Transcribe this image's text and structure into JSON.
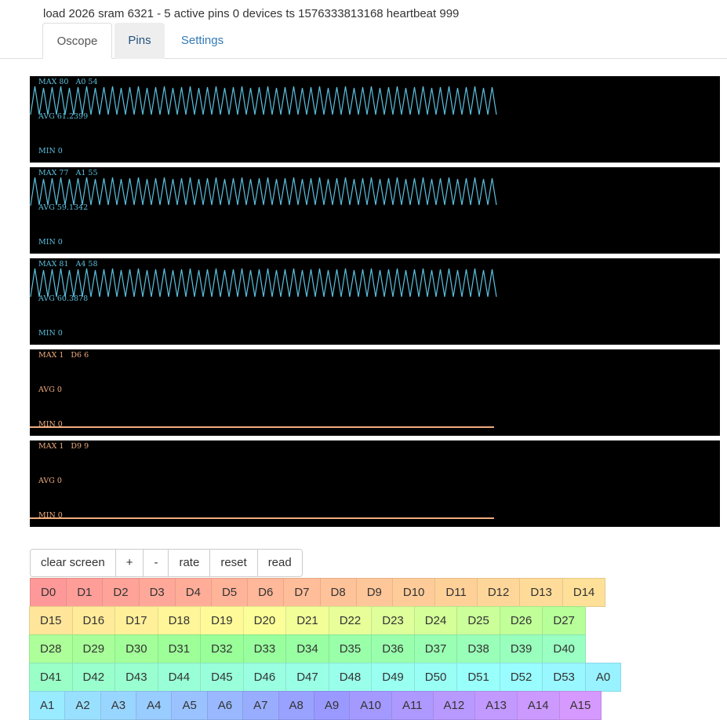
{
  "status": {
    "text": "load 2026 sram 6321 - 5 active pins 0 devices ts 1576333813168 heartbeat 999"
  },
  "tabs": [
    {
      "label": "Oscope"
    },
    {
      "label": "Pins"
    },
    {
      "label": "Settings"
    }
  ],
  "scopes": [
    {
      "max": "MAX 80",
      "pin": "A0 54",
      "avg": "AVG 61.2399",
      "min": "MIN 0",
      "color": "#5bc0de",
      "signal": "oscillating"
    },
    {
      "max": "MAX 77",
      "pin": "A1 55",
      "avg": "AVG 59.1342",
      "min": "MIN 0",
      "color": "#5bc0de",
      "signal": "oscillating"
    },
    {
      "max": "MAX 81",
      "pin": "A4 58",
      "avg": "AVG 60.3878",
      "min": "MIN 0",
      "color": "#5bc0de",
      "signal": "oscillating"
    },
    {
      "max": "MAX 1",
      "pin": "D6 6",
      "avg": "AVG 0",
      "min": "MIN 0",
      "color": "#f0ad7e",
      "signal": "flat"
    },
    {
      "max": "MAX 1",
      "pin": "D9 9",
      "avg": "AVG 0",
      "min": "MIN 0",
      "color": "#f0ad7e",
      "signal": "flat"
    }
  ],
  "controls": [
    {
      "label": "clear screen"
    },
    {
      "label": "+"
    },
    {
      "label": "-"
    },
    {
      "label": "rate"
    },
    {
      "label": "reset"
    },
    {
      "label": "read"
    }
  ],
  "pin_rows": [
    [
      {
        "label": "D0",
        "color": "#ff9999"
      },
      {
        "label": "D1",
        "color": "#ff9e99"
      },
      {
        "label": "D2",
        "color": "#ffa399"
      },
      {
        "label": "D3",
        "color": "#ffa899"
      },
      {
        "label": "D4",
        "color": "#ffad99"
      },
      {
        "label": "D5",
        "color": "#ffb399"
      },
      {
        "label": "D6",
        "color": "#ffb899"
      },
      {
        "label": "D7",
        "color": "#ffbd99"
      },
      {
        "label": "D8",
        "color": "#ffc299"
      },
      {
        "label": "D9",
        "color": "#ffc799"
      },
      {
        "label": "D10",
        "color": "#ffcc99"
      },
      {
        "label": "D11",
        "color": "#ffd199"
      },
      {
        "label": "D12",
        "color": "#ffd699"
      },
      {
        "label": "D13",
        "color": "#ffdb99"
      },
      {
        "label": "D14",
        "color": "#ffe099"
      }
    ],
    [
      {
        "label": "D15",
        "color": "#ffe599"
      },
      {
        "label": "D16",
        "color": "#ffeb99"
      },
      {
        "label": "D17",
        "color": "#fff099"
      },
      {
        "label": "D18",
        "color": "#fff599"
      },
      {
        "label": "D19",
        "color": "#fffa99"
      },
      {
        "label": "D20",
        "color": "#fcff99"
      },
      {
        "label": "D21",
        "color": "#f2ff99"
      },
      {
        "label": "D22",
        "color": "#e8ff99"
      },
      {
        "label": "D23",
        "color": "#deff99"
      },
      {
        "label": "D24",
        "color": "#d4ff99"
      },
      {
        "label": "D25",
        "color": "#cbff99"
      },
      {
        "label": "D26",
        "color": "#c1ff99"
      },
      {
        "label": "D27",
        "color": "#b7ff99"
      }
    ],
    [
      {
        "label": "D28",
        "color": "#adff99"
      },
      {
        "label": "D29",
        "color": "#a8ff99"
      },
      {
        "label": "D30",
        "color": "#a3ff99"
      },
      {
        "label": "D31",
        "color": "#9eff99"
      },
      {
        "label": "D32",
        "color": "#99ff99"
      },
      {
        "label": "D33",
        "color": "#99ff9e"
      },
      {
        "label": "D34",
        "color": "#99ffa3"
      },
      {
        "label": "D35",
        "color": "#99ffa8"
      },
      {
        "label": "D36",
        "color": "#99ffad"
      },
      {
        "label": "D37",
        "color": "#99ffb3"
      },
      {
        "label": "D38",
        "color": "#99ffb8"
      },
      {
        "label": "D39",
        "color": "#99ffbd"
      },
      {
        "label": "D40",
        "color": "#99ffc2"
      }
    ],
    [
      {
        "label": "D41",
        "color": "#99ffc7"
      },
      {
        "label": "D42",
        "color": "#99ffcc"
      },
      {
        "label": "D43",
        "color": "#99ffd1"
      },
      {
        "label": "D44",
        "color": "#99ffd6"
      },
      {
        "label": "D45",
        "color": "#99ffdb"
      },
      {
        "label": "D46",
        "color": "#99ffe0"
      },
      {
        "label": "D47",
        "color": "#99ffe5"
      },
      {
        "label": "D48",
        "color": "#99ffeb"
      },
      {
        "label": "D49",
        "color": "#99fff0"
      },
      {
        "label": "D50",
        "color": "#99fff5"
      },
      {
        "label": "D51",
        "color": "#99fffa"
      },
      {
        "label": "D52",
        "color": "#99fcff"
      },
      {
        "label": "D53",
        "color": "#99f7ff"
      },
      {
        "label": "A0",
        "color": "#99f2ff"
      }
    ],
    [
      {
        "label": "A1",
        "color": "#99ebff"
      },
      {
        "label": "A2",
        "color": "#99e0ff"
      },
      {
        "label": "A3",
        "color": "#99d6ff"
      },
      {
        "label": "A4",
        "color": "#99ccff"
      },
      {
        "label": "A5",
        "color": "#99c2ff"
      },
      {
        "label": "A6",
        "color": "#99b8ff"
      },
      {
        "label": "A7",
        "color": "#99adff"
      },
      {
        "label": "A8",
        "color": "#99a3ff"
      },
      {
        "label": "A9",
        "color": "#9999ff"
      },
      {
        "label": "A10",
        "color": "#a399ff"
      },
      {
        "label": "A11",
        "color": "#ad99ff"
      },
      {
        "label": "A12",
        "color": "#b899ff"
      },
      {
        "label": "A13",
        "color": "#c299ff"
      },
      {
        "label": "A14",
        "color": "#cc99ff"
      },
      {
        "label": "A15",
        "color": "#d699ff"
      }
    ]
  ]
}
